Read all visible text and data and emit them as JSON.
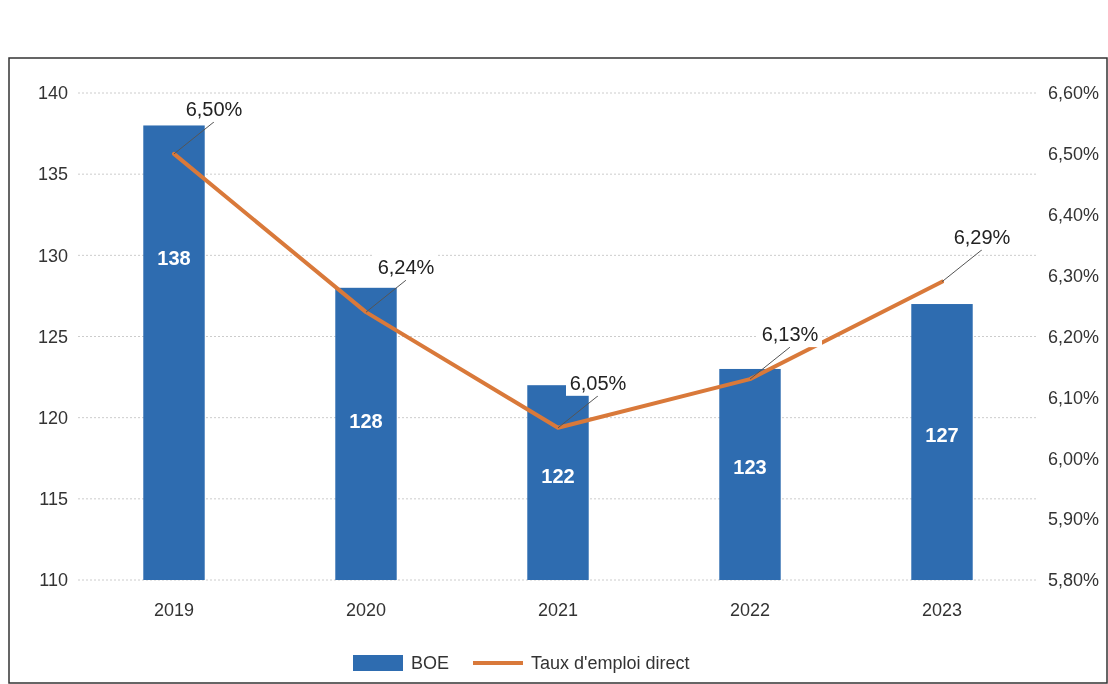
{
  "chart_data": {
    "type": "bar",
    "categories": [
      "2019",
      "2020",
      "2021",
      "2022",
      "2023"
    ],
    "series": [
      {
        "name": "BOE",
        "color": "#2e6cb0",
        "values": [
          138,
          128,
          122,
          123,
          127
        ],
        "value_labels": [
          "138",
          "128",
          "122",
          "123",
          "127"
        ]
      },
      {
        "name": "Taux d'emploi direct",
        "type": "line",
        "axis": "y2",
        "color": "#d9793a",
        "values": [
          6.5,
          6.24,
          6.05,
          6.13,
          6.29
        ],
        "value_labels": [
          "6,50%",
          "6,24%",
          "6,05%",
          "6,13%",
          "6,29%"
        ]
      }
    ],
    "ylim": [
      110,
      140
    ],
    "yticks": [
      110,
      115,
      120,
      125,
      130,
      135,
      140
    ],
    "y2lim": [
      5.8,
      6.6
    ],
    "y2ticks": [
      {
        "value": 5.8,
        "label": "5,80%"
      },
      {
        "value": 5.9,
        "label": "5,90%"
      },
      {
        "value": 6.0,
        "label": "6,00%"
      },
      {
        "value": 6.1,
        "label": "6,10%"
      },
      {
        "value": 6.2,
        "label": "6,20%"
      },
      {
        "value": 6.3,
        "label": "6,30%"
      },
      {
        "value": 6.4,
        "label": "6,40%"
      },
      {
        "value": 6.5,
        "label": "6,50%"
      },
      {
        "value": 6.6,
        "label": "6,60%"
      }
    ],
    "grid": "y",
    "legend": "bottom",
    "marker": "none",
    "line_style": "solid"
  }
}
